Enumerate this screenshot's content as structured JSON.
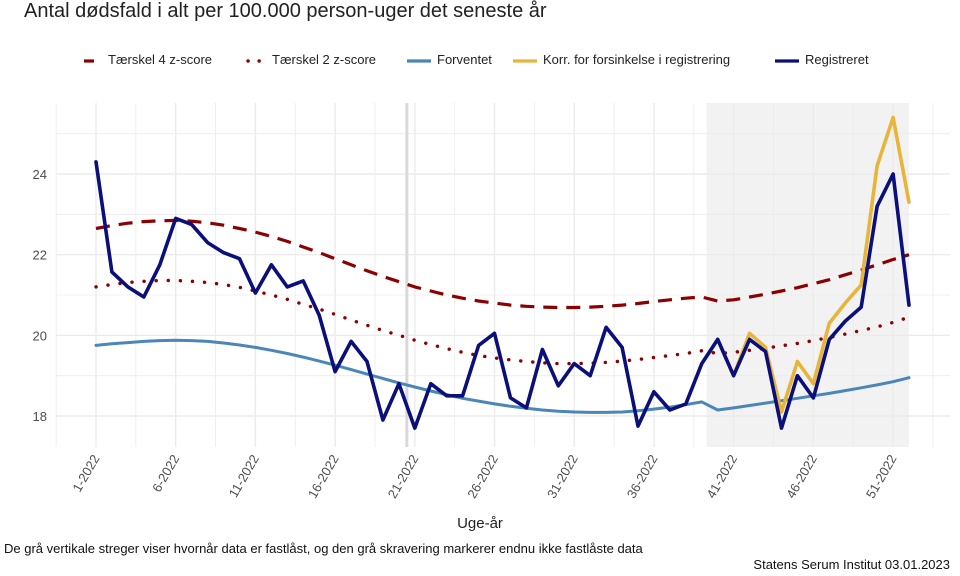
{
  "chart_data": {
    "type": "line",
    "title": "Antal dødsfald i alt per 100.000 person-uger det seneste år",
    "xlabel": "Uge-år",
    "ylabel": "",
    "ylim": [
      17.3,
      25.8
    ],
    "yticks": [
      18,
      20,
      22,
      24
    ],
    "xlim": [
      -1.5,
      55
    ],
    "x": [
      1,
      2,
      3,
      4,
      5,
      6,
      7,
      8,
      9,
      10,
      11,
      12,
      13,
      14,
      15,
      16,
      17,
      18,
      19,
      20,
      21,
      22,
      23,
      24,
      25,
      26,
      27,
      28,
      29,
      30,
      31,
      32,
      33,
      34,
      35,
      36,
      37,
      38,
      39,
      40,
      41,
      42,
      43,
      44,
      45,
      46,
      47,
      48,
      49,
      50,
      51,
      52
    ],
    "xticks": [
      {
        "week": 1,
        "label": "1-2022"
      },
      {
        "week": 6,
        "label": "6-2022"
      },
      {
        "week": 11,
        "label": "11-2022"
      },
      {
        "week": 16,
        "label": "16-2022"
      },
      {
        "week": 21,
        "label": "21-2022"
      },
      {
        "week": 26,
        "label": "26-2022"
      },
      {
        "week": 31,
        "label": "31-2022"
      },
      {
        "week": 36,
        "label": "36-2022"
      },
      {
        "week": 41,
        "label": "41-2022"
      },
      {
        "week": 46,
        "label": "46-2022"
      },
      {
        "week": 51,
        "label": "51-2022"
      }
    ],
    "grid": true,
    "legend_position": "top",
    "fixed_data_line_week": 20.5,
    "unlocked_shading_weeks": [
      39.3,
      52
    ],
    "series": [
      {
        "name": "Tærskel 4 z-score",
        "color": "#8B0000",
        "style": "dashed",
        "start_week": 1,
        "values": [
          22.65,
          22.72,
          22.78,
          22.82,
          22.84,
          22.85,
          22.83,
          22.79,
          22.73,
          22.65,
          22.56,
          22.45,
          22.33,
          22.19,
          22.05,
          21.9,
          21.75,
          21.6,
          21.46,
          21.33,
          21.2,
          21.1,
          21.0,
          20.92,
          20.85,
          20.8,
          20.75,
          20.72,
          20.7,
          20.69,
          20.69,
          20.7,
          20.72,
          20.75,
          20.79,
          20.84,
          20.88,
          20.92,
          20.95,
          20.85,
          20.88,
          20.95,
          21.02,
          21.1,
          21.18,
          21.28,
          21.38,
          21.5,
          21.62,
          21.75,
          21.88,
          22.0
        ]
      },
      {
        "name": "Tærskel 2 z-score",
        "color": "#8B0000",
        "style": "dotted",
        "start_week": 1,
        "values": [
          21.2,
          21.26,
          21.31,
          21.34,
          21.36,
          21.36,
          21.34,
          21.31,
          21.26,
          21.19,
          21.1,
          21.0,
          20.89,
          20.77,
          20.65,
          20.52,
          20.38,
          20.25,
          20.12,
          20.0,
          19.88,
          19.77,
          19.67,
          19.58,
          19.5,
          19.44,
          19.39,
          19.35,
          19.32,
          19.3,
          19.3,
          19.31,
          19.33,
          19.36,
          19.4,
          19.45,
          19.5,
          19.55,
          19.62,
          19.55,
          19.58,
          19.63,
          19.68,
          19.74,
          19.8,
          19.87,
          19.95,
          20.03,
          20.12,
          20.21,
          20.32,
          20.45
        ]
      },
      {
        "name": "Forventet",
        "color": "#4A86B8",
        "style": "solid",
        "start_week": 1,
        "values": [
          19.75,
          19.79,
          19.82,
          19.85,
          19.87,
          19.88,
          19.87,
          19.85,
          19.81,
          19.76,
          19.7,
          19.63,
          19.55,
          19.46,
          19.36,
          19.26,
          19.15,
          19.04,
          18.93,
          18.82,
          18.72,
          18.62,
          18.53,
          18.44,
          18.37,
          18.3,
          18.24,
          18.19,
          18.15,
          18.12,
          18.1,
          18.09,
          18.09,
          18.1,
          18.13,
          18.17,
          18.22,
          18.28,
          18.35,
          18.15,
          18.2,
          18.26,
          18.32,
          18.38,
          18.44,
          18.5,
          18.56,
          18.63,
          18.7,
          18.77,
          18.85,
          18.95
        ]
      },
      {
        "name": "Korr. for forsinkelse i registrering",
        "color": "#E8B53A",
        "style": "solid",
        "start_week": 40,
        "values": [
          19.9,
          19.0,
          20.05,
          19.7,
          18.1,
          19.35,
          18.8,
          20.3,
          20.8,
          21.25,
          24.2,
          25.4,
          23.3
        ]
      },
      {
        "name": "Registreret",
        "color": "#0A0F7A",
        "style": "solid",
        "start_week": 1,
        "values": [
          24.3,
          21.57,
          21.2,
          20.95,
          21.75,
          22.9,
          22.75,
          22.3,
          22.05,
          21.9,
          21.05,
          21.75,
          21.2,
          21.35,
          20.5,
          19.1,
          19.85,
          19.35,
          17.9,
          18.8,
          17.7,
          18.8,
          18.5,
          18.5,
          19.75,
          20.05,
          18.45,
          18.2,
          19.65,
          18.75,
          19.3,
          19.0,
          20.2,
          19.7,
          17.75,
          18.6,
          18.15,
          18.3,
          19.3,
          19.9,
          19.0,
          19.9,
          19.6,
          17.7,
          19.0,
          18.45,
          19.9,
          20.35,
          20.7,
          23.2,
          24.0,
          20.75
        ]
      }
    ],
    "annotations": {
      "caption": "De grå vertikale streger viser hvornår data er fastlåst, og den grå skravering markerer endnu ikke fastlåste data",
      "source": "Statens Serum Institut  03.01.2023"
    },
    "colors": {
      "grid": "#EBEBEB",
      "shading": "#F2F2F2",
      "fixed_line": "#D9D9D9",
      "axis_text": "#4D4D4D"
    }
  }
}
